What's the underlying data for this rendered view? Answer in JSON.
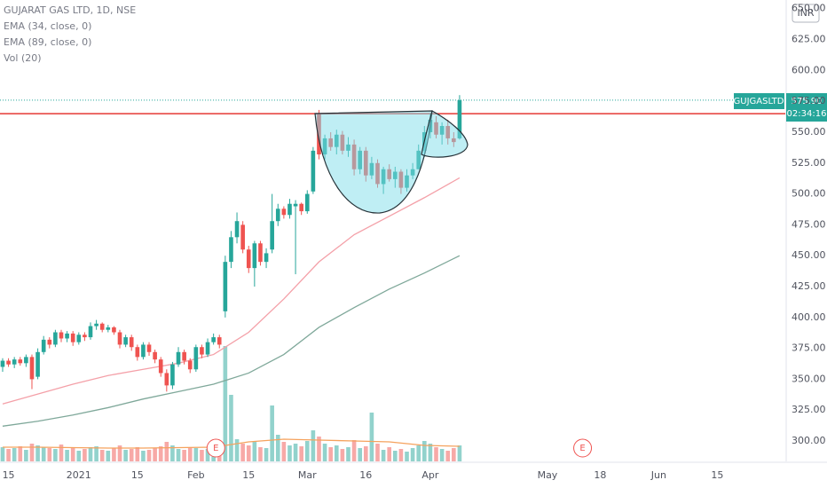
{
  "chart_data": {
    "type": "candlestick",
    "title": "GUJARAT GAS LTD, 1D, NSE",
    "symbol": "GUJGASLTD",
    "currency": "INR",
    "countdown": "02:34:16",
    "last_price": {
      "value": 575.9,
      "label": "575.90"
    },
    "resistance": 565,
    "resistance_color": "#e53935",
    "up_color": "#26a69a",
    "down_color": "#ef5350",
    "open": [
      360,
      365,
      362,
      366,
      363,
      368,
      352,
      372,
      382,
      378,
      388,
      383,
      387,
      380,
      386,
      384,
      393,
      395,
      390,
      392,
      388,
      378,
      384,
      376,
      368,
      378,
      372,
      366,
      355,
      345,
      362,
      372,
      365,
      358,
      376,
      370,
      380,
      384,
      405,
      445,
      465,
      475,
      455,
      440,
      460,
      445,
      455,
      478,
      488,
      483,
      490,
      492,
      486,
      502,
      565,
      532,
      545,
      538,
      548,
      535,
      540,
      520,
      535,
      515,
      525,
      508,
      520,
      512,
      518,
      505,
      515,
      520,
      535,
      550,
      558,
      548,
      555,
      545,
      545
    ],
    "high": [
      367,
      367,
      368,
      368,
      370,
      370,
      375,
      385,
      384,
      390,
      390,
      389,
      389,
      388,
      388,
      396,
      398,
      396,
      394,
      393,
      390,
      386,
      386,
      378,
      380,
      380,
      374,
      368,
      358,
      364,
      376,
      374,
      367,
      378,
      378,
      383,
      387,
      386,
      450,
      470,
      485,
      478,
      458,
      462,
      462,
      456,
      500,
      492,
      490,
      496,
      495,
      493,
      503,
      538,
      568,
      548,
      550,
      552,
      551,
      546,
      544,
      538,
      538,
      530,
      528,
      522,
      524,
      522,
      520,
      520,
      525,
      540,
      555,
      565,
      563,
      558,
      560,
      550,
      580
    ],
    "low": [
      356,
      360,
      359,
      361,
      360,
      342,
      350,
      370,
      375,
      376,
      380,
      380,
      377,
      378,
      381,
      382,
      390,
      388,
      388,
      386,
      375,
      376,
      373,
      365,
      366,
      369,
      363,
      352,
      340,
      342,
      360,
      362,
      355,
      356,
      367,
      368,
      378,
      375,
      400,
      440,
      460,
      452,
      436,
      425,
      442,
      440,
      452,
      474,
      480,
      480,
      435,
      483,
      484,
      500,
      528,
      528,
      535,
      532,
      532,
      530,
      515,
      516,
      510,
      512,
      505,
      500,
      510,
      505,
      500,
      502,
      512,
      520,
      530,
      545,
      545,
      540,
      540,
      538,
      544
    ],
    "close": [
      365,
      362,
      366,
      363,
      368,
      350,
      372,
      382,
      378,
      388,
      383,
      387,
      380,
      386,
      384,
      393,
      395,
      390,
      392,
      388,
      378,
      384,
      376,
      368,
      378,
      372,
      366,
      355,
      345,
      362,
      372,
      365,
      358,
      376,
      370,
      380,
      384,
      378,
      445,
      465,
      478,
      455,
      440,
      460,
      445,
      452,
      478,
      488,
      483,
      492,
      492,
      486,
      500,
      535,
      532,
      545,
      538,
      548,
      535,
      540,
      520,
      535,
      515,
      525,
      508,
      520,
      512,
      518,
      505,
      515,
      520,
      535,
      550,
      560,
      548,
      555,
      545,
      542,
      575.9
    ],
    "volume": [
      1.6,
      1.4,
      1.5,
      1.7,
      1.3,
      2.0,
      1.8,
      1.6,
      1.5,
      1.4,
      1.9,
      1.3,
      1.5,
      1.2,
      1.4,
      1.6,
      1.7,
      1.3,
      1.2,
      1.5,
      1.8,
      1.3,
      1.4,
      1.6,
      1.2,
      1.3,
      1.5,
      1.7,
      2.2,
      1.8,
      1.4,
      1.3,
      1.6,
      1.5,
      1.3,
      1.4,
      1.6,
      1.5,
      13.0,
      7.5,
      2.5,
      2.0,
      1.8,
      2.2,
      1.6,
      1.5,
      6.3,
      3.0,
      2.2,
      1.8,
      2.0,
      1.7,
      2.3,
      3.5,
      2.8,
      2.0,
      1.6,
      1.8,
      1.4,
      1.6,
      2.4,
      1.5,
      1.7,
      5.5,
      2.0,
      1.3,
      1.6,
      1.2,
      1.4,
      1.1,
      1.5,
      1.8,
      2.3,
      2.0,
      1.6,
      1.4,
      1.2,
      1.5,
      1.8
    ],
    "indicators": [
      {
        "name": "EMA (34, close, 0)",
        "color": "#f4a0a8",
        "x": [
          0,
          6,
          12,
          18,
          24,
          30,
          36,
          42,
          48,
          54,
          60,
          66,
          72,
          78
        ],
        "values": [
          330,
          338,
          346,
          353,
          358,
          363,
          370,
          388,
          415,
          445,
          467,
          482,
          497,
          513
        ]
      },
      {
        "name": "EMA (89, close, 0)",
        "color": "#7fa89a",
        "x": [
          0,
          6,
          12,
          18,
          24,
          30,
          36,
          42,
          48,
          54,
          60,
          66,
          72,
          78
        ],
        "values": [
          312,
          316,
          321,
          327,
          334,
          340,
          346,
          355,
          370,
          392,
          408,
          423,
          436,
          450
        ]
      },
      {
        "name": "Vol (20)",
        "color": "#f5a25d",
        "axis": "volume",
        "x": [
          0,
          6,
          12,
          18,
          24,
          30,
          36,
          42,
          48,
          54,
          60,
          66,
          72,
          78
        ],
        "values": [
          1.6,
          1.6,
          1.55,
          1.5,
          1.5,
          1.55,
          1.6,
          2.2,
          2.5,
          2.4,
          2.3,
          2.2,
          1.8,
          1.7
        ]
      }
    ],
    "annotations": [
      {
        "x": 36.4,
        "label": "E"
      },
      {
        "x": 99,
        "label": "E"
      }
    ],
    "xlim": [
      -0.45,
      133.6
    ],
    "xticks": [
      {
        "value": 1,
        "label": "15"
      },
      {
        "value": 13,
        "label": "2021"
      },
      {
        "value": 23,
        "label": "15"
      },
      {
        "value": 33,
        "label": "Feb"
      },
      {
        "value": 42,
        "label": "15"
      },
      {
        "value": 52,
        "label": "Mar"
      },
      {
        "value": 62,
        "label": "16"
      },
      {
        "value": 73,
        "label": "Apr"
      },
      {
        "value": 93,
        "label": "May"
      },
      {
        "value": 102,
        "label": "18"
      },
      {
        "value": 112,
        "label": "Jun"
      },
      {
        "value": 122,
        "label": "15"
      }
    ],
    "ylim": [
      283.5,
      657
    ],
    "yticks": [
      {
        "value": 300,
        "label": "300.00"
      },
      {
        "value": 325,
        "label": "325.00"
      },
      {
        "value": 350,
        "label": "350.00"
      },
      {
        "value": 375,
        "label": "375.00"
      },
      {
        "value": 400,
        "label": "400.00"
      },
      {
        "value": 425,
        "label": "425.00"
      },
      {
        "value": 450,
        "label": "450.00"
      },
      {
        "value": 475,
        "label": "475.00"
      },
      {
        "value": 500,
        "label": "500.00"
      },
      {
        "value": 525,
        "label": "525.00"
      },
      {
        "value": 550,
        "label": "550.00"
      },
      {
        "value": 575,
        "label": "575.00"
      },
      {
        "value": 600,
        "label": "600.00"
      },
      {
        "value": 625,
        "label": "625.00"
      },
      {
        "value": 650,
        "label": "650.00"
      }
    ],
    "grid": false
  }
}
